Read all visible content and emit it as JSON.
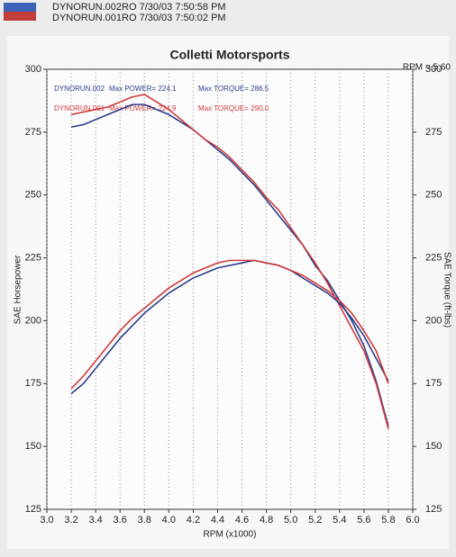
{
  "header": [
    "DYNORUN.002RO  7/30/03 7:50:58 PM",
    "DYNORUN.001RO  7/30/03 7:50:02 PM"
  ],
  "chart_data": {
    "type": "line",
    "title": "Colletti Motorsports",
    "annotation": "RPM = 5.60",
    "x_label": "RPM (x1000)",
    "y_label": "SAE Horsepower",
    "y2_label": "SAE Torque (ft-lbs)",
    "legend": [
      {
        "name": "DYNORUN.002",
        "color": "#2c3f8c",
        "max_power": "Max POWER= 224.1",
        "max_torque": "Max TORQUE= 286.5"
      },
      {
        "name": "DYNORUN.001",
        "color": "#d03a3a",
        "max_power": "Max POWER= 224.9",
        "max_torque": "Max TORQUE= 290.0"
      }
    ],
    "x": [
      3.2,
      3.3,
      3.4,
      3.5,
      3.6,
      3.7,
      3.8,
      3.9,
      4.0,
      4.1,
      4.2,
      4.3,
      4.4,
      4.5,
      4.6,
      4.7,
      4.8,
      4.9,
      5.0,
      5.1,
      5.2,
      5.3,
      5.4,
      5.5,
      5.6,
      5.7,
      5.8
    ],
    "series": [
      {
        "color": "#2c3f8c",
        "axis": "y2",
        "values": [
          277,
          278,
          280,
          282,
          284,
          286,
          286,
          284,
          282,
          279,
          276,
          272,
          268,
          264,
          259,
          254,
          248,
          242,
          236,
          230,
          222,
          216,
          208,
          200,
          190,
          176,
          158
        ]
      },
      {
        "color": "#d03a3a",
        "axis": "y2",
        "values": [
          282,
          283,
          284,
          285,
          287,
          289,
          290,
          287,
          284,
          280,
          276,
          272,
          269,
          265,
          260,
          255,
          249,
          244,
          237,
          230,
          223,
          215,
          206,
          197,
          188,
          175,
          157
        ]
      },
      {
        "color": "#2c3f8c",
        "axis": "y",
        "values": [
          171,
          175,
          181,
          187,
          193,
          198,
          203,
          207,
          211,
          214,
          217,
          219,
          221,
          222,
          223,
          224,
          223,
          222,
          220,
          217,
          214,
          211,
          207,
          201,
          194,
          185,
          176
        ]
      },
      {
        "color": "#d03a3a",
        "axis": "y",
        "values": [
          173,
          178,
          184,
          190,
          196,
          201,
          205,
          209,
          213,
          216,
          219,
          221,
          223,
          224,
          224,
          224,
          223,
          222,
          220,
          218,
          215,
          212,
          208,
          203,
          196,
          188,
          175
        ]
      }
    ],
    "xlim": [
      3.0,
      6.0
    ],
    "xticks": [
      {
        "value": 3.0,
        "label": "3.0"
      },
      3.2,
      3.4,
      3.6,
      3.8,
      {
        "value": 4.0,
        "label": "4.0"
      },
      4.2,
      4.4,
      4.6,
      4.8,
      {
        "value": 5.0,
        "label": "5.0"
      },
      5.2,
      5.4,
      5.6,
      5.8,
      {
        "value": 6.0,
        "label": "6.0"
      }
    ],
    "ylim": [
      125,
      300
    ],
    "yticks": [
      125,
      150,
      175,
      200,
      225,
      250,
      275,
      300
    ],
    "y2lim": [
      125,
      300
    ],
    "y2ticks": [
      125,
      150,
      175,
      200,
      225,
      250,
      275,
      300
    ],
    "grid": "x"
  }
}
